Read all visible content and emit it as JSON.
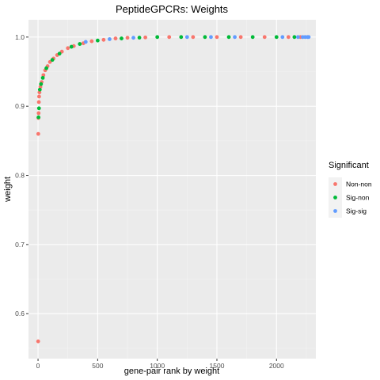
{
  "chart_data": {
    "type": "scatter",
    "title": "PeptideGPCRs: Weights",
    "xlabel": "gene-pair rank by weight",
    "ylabel": "weight",
    "xlim": [
      -80,
      2330
    ],
    "ylim": [
      0.535,
      1.025
    ],
    "x_ticks": [
      0,
      500,
      1000,
      1500,
      2000
    ],
    "x_tick_labels": [
      "0",
      "500",
      "1000",
      "1500",
      "2000"
    ],
    "y_ticks": [
      0.6,
      0.7,
      0.8,
      0.9,
      1.0
    ],
    "y_tick_labels": [
      "0.6",
      "0.7",
      "0.8",
      "0.9",
      "1.0"
    ],
    "grid": true,
    "legend": {
      "title": "Significant",
      "position": "right",
      "entries": [
        {
          "label": "Non-non",
          "color": "#F8766D"
        },
        {
          "label": "Sig-non",
          "color": "#00BA38"
        },
        {
          "label": "Sig-sig",
          "color": "#619CFF"
        }
      ]
    },
    "series": [
      {
        "name": "Non-non",
        "color": "#F8766D",
        "points": [
          [
            1,
            0.56
          ],
          [
            2,
            0.86
          ],
          [
            3,
            0.883
          ],
          [
            5,
            0.89
          ],
          [
            7,
            0.906
          ],
          [
            9,
            0.914
          ],
          [
            12,
            0.92
          ],
          [
            20,
            0.928
          ],
          [
            30,
            0.935
          ],
          [
            45,
            0.945
          ],
          [
            60,
            0.952
          ],
          [
            80,
            0.958
          ],
          [
            100,
            0.964
          ],
          [
            130,
            0.969
          ],
          [
            160,
            0.974
          ],
          [
            200,
            0.979
          ],
          [
            250,
            0.984
          ],
          [
            300,
            0.987
          ],
          [
            380,
            0.991
          ],
          [
            450,
            0.994
          ],
          [
            550,
            0.996
          ],
          [
            650,
            0.998
          ],
          [
            750,
            0.999
          ],
          [
            900,
            0.9995
          ],
          [
            1100,
            1.0
          ],
          [
            1300,
            1.0
          ],
          [
            1500,
            1.0
          ],
          [
            1700,
            1.0
          ],
          [
            1900,
            1.0
          ],
          [
            2100,
            1.0
          ],
          [
            2200,
            1.0
          ]
        ]
      },
      {
        "name": "Sig-non",
        "color": "#00BA38",
        "points": [
          [
            4,
            0.884
          ],
          [
            8,
            0.897
          ],
          [
            15,
            0.924
          ],
          [
            25,
            0.932
          ],
          [
            40,
            0.941
          ],
          [
            70,
            0.955
          ],
          [
            120,
            0.967
          ],
          [
            180,
            0.976
          ],
          [
            280,
            0.986
          ],
          [
            350,
            0.99
          ],
          [
            500,
            0.995
          ],
          [
            700,
            0.998
          ],
          [
            850,
            0.9992
          ],
          [
            1000,
            1.0
          ],
          [
            1200,
            1.0
          ],
          [
            1400,
            1.0
          ],
          [
            1600,
            1.0
          ],
          [
            1800,
            1.0
          ],
          [
            2000,
            1.0
          ],
          [
            2150,
            1.0
          ]
        ]
      },
      {
        "name": "Sig-sig",
        "color": "#619CFF",
        "points": [
          [
            400,
            0.993
          ],
          [
            600,
            0.997
          ],
          [
            800,
            0.999
          ],
          [
            1250,
            1.0
          ],
          [
            1450,
            1.0
          ],
          [
            1650,
            1.0
          ],
          [
            2050,
            1.0
          ],
          [
            2180,
            1.0
          ],
          [
            2220,
            1.0
          ],
          [
            2240,
            1.0
          ],
          [
            2260,
            1.0
          ],
          [
            2270,
            1.0
          ]
        ]
      }
    ]
  }
}
